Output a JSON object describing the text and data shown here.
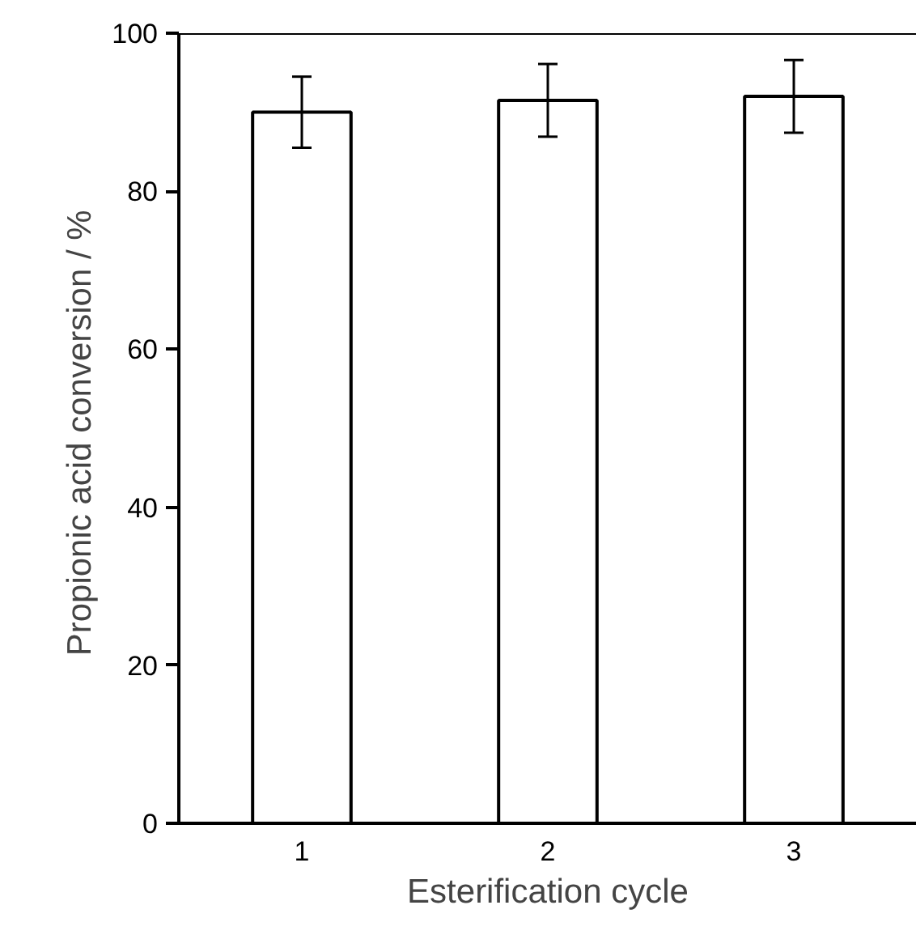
{
  "chart_data": {
    "type": "bar",
    "xlabel": "Esterification cycle",
    "ylabel": "Propionic  acid conversion / %",
    "categories": [
      "1",
      "2",
      "3"
    ],
    "values": [
      90,
      91.5,
      92
    ],
    "errors": [
      4.5,
      4.6,
      4.6
    ],
    "color": "#ffffff",
    "ylim": [
      0,
      100
    ],
    "yticks": [
      0,
      20,
      40,
      60,
      80,
      100
    ],
    "grid": false
  }
}
